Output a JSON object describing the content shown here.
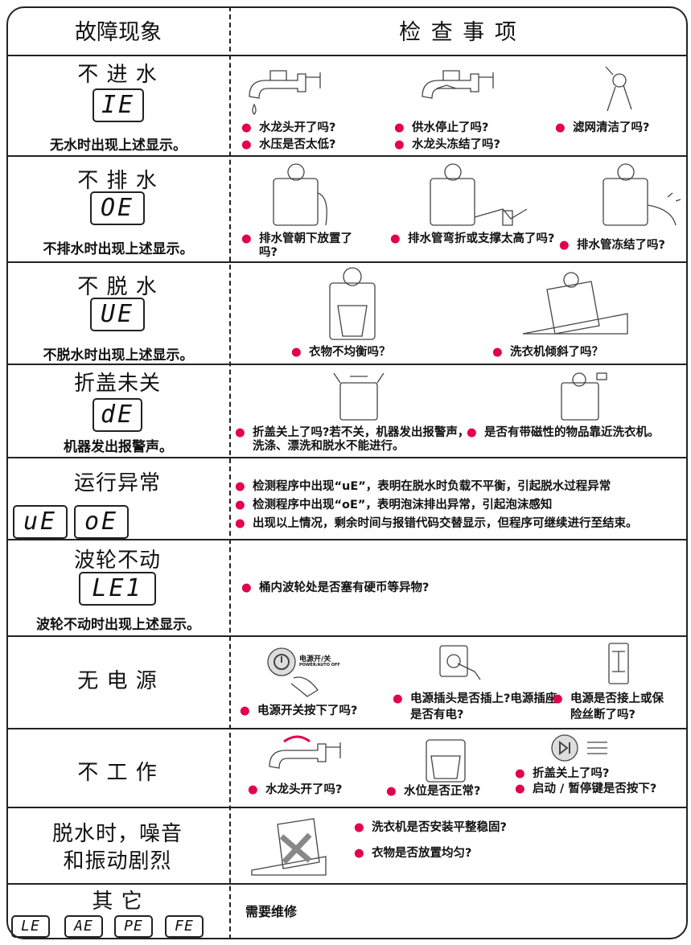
{
  "header": {
    "symptom": "故障现象",
    "check": "检 查 事 项"
  },
  "rows": [
    {
      "symptom": "不 进 水",
      "codes": [
        "IE"
      ],
      "note": "无水时出现上述显示。",
      "checks": [
        "水龙头开了吗?",
        "水压是否太低?",
        "供水停止了吗?",
        "水龙头冻结了吗?",
        "滤网清洁了吗?"
      ]
    },
    {
      "symptom": "不 排 水",
      "codes": [
        "OE"
      ],
      "note": "不排水时出现上述显示。",
      "checks": [
        "排水管朝下放置了吗?",
        "排水管弯折或支撑太高了吗?",
        "排水管冻结了吗?"
      ]
    },
    {
      "symptom": "不 脱 水",
      "codes": [
        "UE"
      ],
      "note": "不脱水时出现上述显示。",
      "checks": [
        "衣物不均衡吗？",
        "洗衣机倾斜了吗？"
      ]
    },
    {
      "symptom": "折盖未关",
      "codes": [
        "dE"
      ],
      "note": "机器发出报警声。",
      "checks": [
        "折盖关上了吗?若不关，机器发出报警声，洗涤、漂洗和脱水不能进行。",
        "是否有带磁性的物品靠近洗衣机。"
      ]
    },
    {
      "symptom": "运行异常",
      "codes": [
        "uE",
        "oE"
      ],
      "checks": [
        "检测程序中出现“uE”，表明在脱水时负载不平衡，引起脱水过程异常",
        "检测程序中出现“oE”，表明泡沫排出异常，引起泡沫感知",
        "出现以上情况，剩余时间与报错代码交替显示，但程序可继续进行至结束。"
      ]
    },
    {
      "symptom": "波轮不动",
      "codes": [
        "LE1"
      ],
      "note": "波轮不动时出现上述显示。",
      "checks": [
        "桶内波轮处是否塞有硬币等异物?"
      ]
    },
    {
      "symptom": "无 电 源",
      "icon_text": [
        "电源开/关",
        "POWER/AUTO OFF"
      ],
      "checks": [
        "电源开关按下了吗?",
        "电源插头是否插上?电源插座是否有电?",
        "电源是否接上或保险丝断了吗?"
      ]
    },
    {
      "symptom": "不 工 作",
      "checks": [
        "水龙头开了吗?",
        "水位是否正常?",
        "折盖关上了吗?",
        "启动 / 暂停键是否按下?"
      ]
    },
    {
      "symptom": "脱水时，噪音和振动剧烈",
      "checks": [
        "洗衣机是否安装平整稳固?",
        "衣物是否放置均匀?"
      ]
    },
    {
      "symptom": "其 它",
      "codes": [
        "LE",
        "AE",
        "PE",
        "FE"
      ],
      "checks": [
        "需要维修"
      ]
    }
  ]
}
